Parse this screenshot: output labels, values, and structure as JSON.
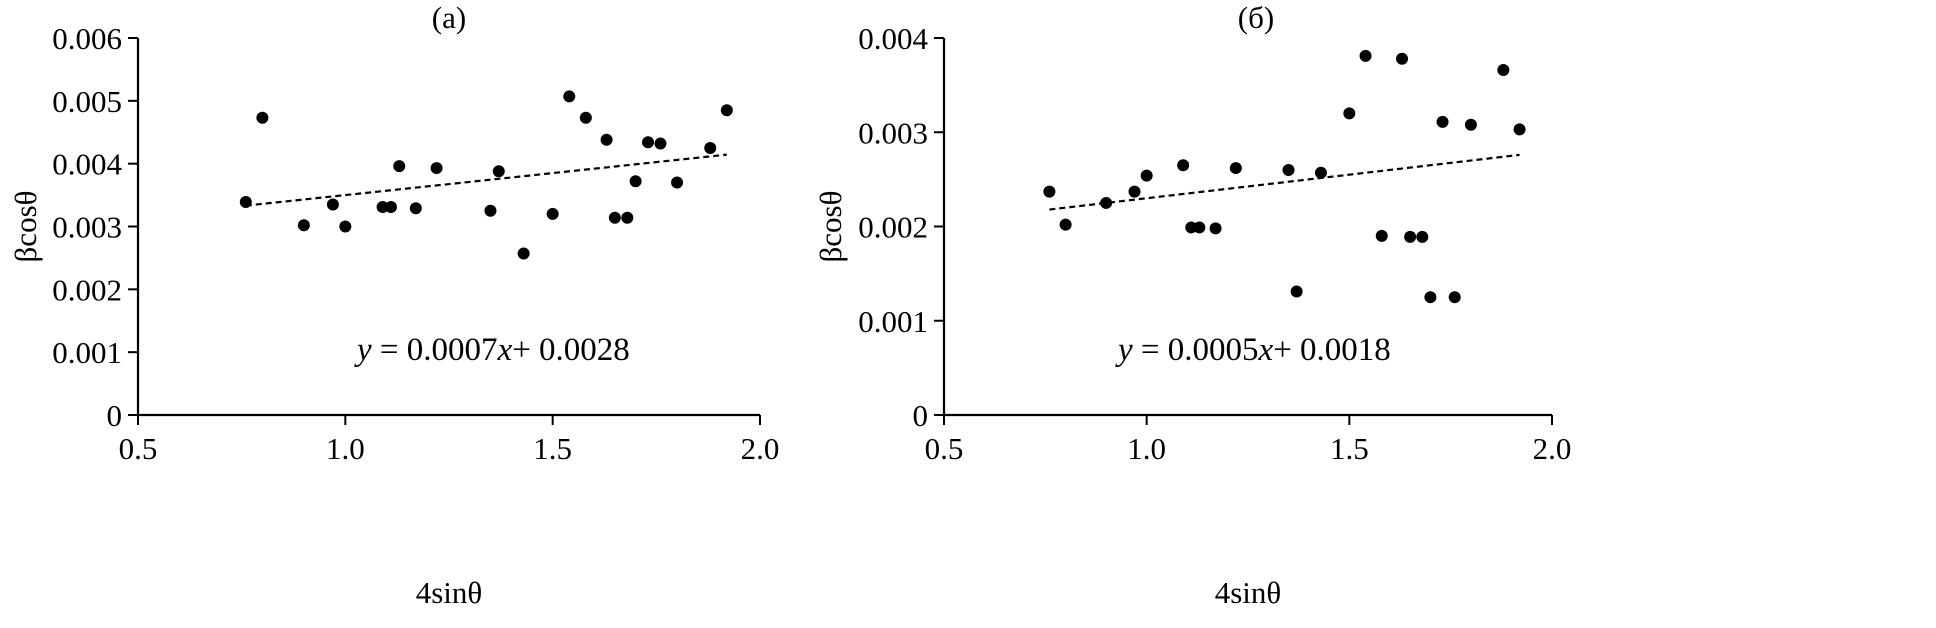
{
  "chart_data": [
    {
      "type": "scatter",
      "title": "(а)",
      "xlabel": "4sinθ",
      "ylabel": "βcosθ",
      "xlim": [
        0.5,
        2.0
      ],
      "ylim": [
        0,
        0.006
      ],
      "x_ticks": [
        "0.5",
        "1.0",
        "1.5",
        "2.0"
      ],
      "y_ticks": [
        "0",
        "0.001",
        "0.002",
        "0.003",
        "0.004",
        "0.005",
        "0.006"
      ],
      "grid": false,
      "points": {
        "x": [
          0.76,
          0.8,
          0.9,
          0.97,
          1.0,
          1.09,
          1.11,
          1.13,
          1.17,
          1.22,
          1.35,
          1.37,
          1.43,
          1.5,
          1.54,
          1.58,
          1.63,
          1.65,
          1.68,
          1.7,
          1.73,
          1.76,
          1.8,
          1.88,
          1.92
        ],
        "y": [
          0.00339,
          0.00473,
          0.00302,
          0.00335,
          0.003,
          0.00331,
          0.00331,
          0.00396,
          0.00329,
          0.00393,
          0.00325,
          0.00388,
          0.00257,
          0.0032,
          0.00507,
          0.00473,
          0.00438,
          0.00314,
          0.00314,
          0.00372,
          0.00434,
          0.00432,
          0.0037,
          0.00425,
          0.00485
        ]
      },
      "trendline": {
        "slope": 0.0007,
        "intercept": 0.0028,
        "x_range": [
          0.76,
          1.92
        ],
        "style": "dashed"
      },
      "equation": {
        "y": "y",
        "equals": " = 0.0007",
        "x": "x",
        "rest": "+ 0.0028"
      }
    },
    {
      "type": "scatter",
      "title": "(б)",
      "xlabel": "4sinθ",
      "ylabel": "βcosθ",
      "xlim": [
        0.5,
        2.0
      ],
      "ylim": [
        0,
        0.004
      ],
      "x_ticks": [
        "0.5",
        "1.0",
        "1.5",
        "2.0"
      ],
      "y_ticks": [
        "0",
        "0.001",
        "0.002",
        "0.003",
        "0.004"
      ],
      "grid": false,
      "points": {
        "x": [
          0.76,
          0.8,
          0.9,
          0.97,
          1.0,
          1.09,
          1.11,
          1.13,
          1.17,
          1.22,
          1.35,
          1.37,
          1.43,
          1.5,
          1.54,
          1.58,
          1.63,
          1.65,
          1.68,
          1.7,
          1.73,
          1.76,
          1.8,
          1.88,
          1.92
        ],
        "y": [
          0.00237,
          0.00202,
          0.00225,
          0.00237,
          0.00254,
          0.00265,
          0.00199,
          0.00199,
          0.00198,
          0.00262,
          0.0026,
          0.00131,
          0.00257,
          0.0032,
          0.00381,
          0.0019,
          0.00378,
          0.00189,
          0.00189,
          0.00125,
          0.00311,
          0.00125,
          0.00308,
          0.00366,
          0.00303
        ]
      },
      "trendline": {
        "slope": 0.0005,
        "intercept": 0.0018,
        "x_range": [
          0.76,
          1.92
        ],
        "style": "dashed"
      },
      "equation": {
        "y": "y",
        "equals": " = 0.0005",
        "x": "x",
        "rest": "+ 0.0018"
      }
    }
  ]
}
